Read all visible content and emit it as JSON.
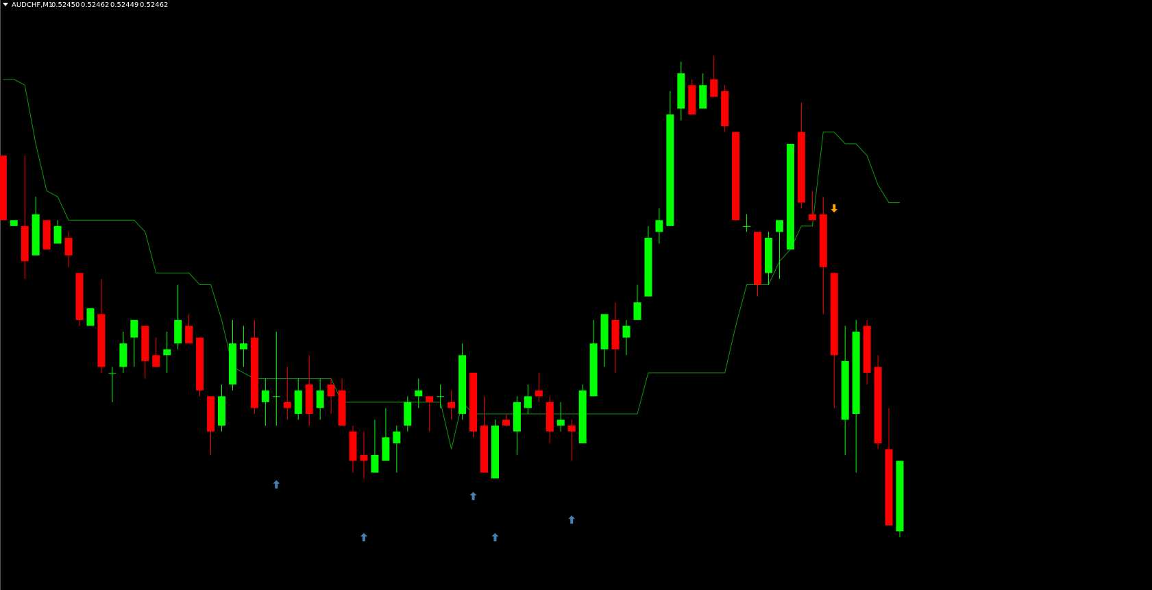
{
  "chart_data": {
    "type": "candlestick",
    "header": {
      "symbol": "AUDCHF,M1",
      "quote": [
        "0.52450",
        "0.52462",
        "0.52449",
        "0.52462"
      ]
    },
    "ylim": [
      0.5244,
      0.525405
    ],
    "up_color": "#00ff00",
    "down_color": "#ff0000",
    "open": [
      0.52514,
      0.52502,
      0.52502,
      0.52497,
      0.52503,
      0.52499,
      0.525,
      0.52494,
      0.52485,
      0.52487,
      0.52477,
      0.52478,
      0.52483,
      0.52485,
      0.5248,
      0.5248,
      0.52482,
      0.52485,
      0.52483,
      0.52473,
      0.52468,
      0.52475,
      0.52481,
      0.52483,
      0.52472,
      0.52473,
      0.52472,
      0.5247,
      0.52475,
      0.52471,
      0.52475,
      0.52474,
      0.52467,
      0.52463,
      0.5246,
      0.52462,
      0.52465,
      0.52468,
      0.52473,
      0.52473,
      0.52473,
      0.52472,
      0.5247,
      0.52477,
      0.52468,
      0.52459,
      0.52469,
      0.52467,
      0.52471,
      0.52474,
      0.52472,
      0.52468,
      0.52468,
      0.52465,
      0.52473,
      0.52481,
      0.52486,
      0.52483,
      0.52486,
      0.5249,
      0.52501,
      0.52502,
      0.52522,
      0.52526,
      0.52522,
      0.52527,
      0.52525,
      0.52518,
      0.52502,
      0.52501,
      0.52494,
      0.52501,
      0.52498,
      0.52518,
      0.52504,
      0.52504,
      0.52494,
      0.52469,
      0.5247,
      0.52485,
      0.52478,
      0.52464,
      0.5245
    ],
    "high": [
      0.52514,
      0.52503,
      0.52514,
      0.52507,
      0.52503,
      0.52503,
      0.52501,
      0.52494,
      0.52488,
      0.52493,
      0.52478,
      0.52484,
      0.52486,
      0.52485,
      0.52483,
      0.52484,
      0.52492,
      0.52487,
      0.52483,
      0.52473,
      0.52475,
      0.52486,
      0.52485,
      0.52486,
      0.52476,
      0.52484,
      0.52478,
      0.52476,
      0.5248,
      0.52476,
      0.52476,
      0.52476,
      0.52468,
      0.52467,
      0.52469,
      0.52471,
      0.52468,
      0.52473,
      0.52476,
      0.52473,
      0.52475,
      0.52474,
      0.52482,
      0.52477,
      0.52473,
      0.52469,
      0.5247,
      0.52473,
      0.52475,
      0.52477,
      0.52473,
      0.52472,
      0.52469,
      0.52475,
      0.52486,
      0.52487,
      0.52489,
      0.52486,
      0.52492,
      0.52502,
      0.52505,
      0.52525,
      0.5253,
      0.52527,
      0.52528,
      0.52531,
      0.52526,
      0.52518,
      0.52504,
      0.52501,
      0.52501,
      0.52503,
      0.52516,
      0.52523,
      0.52508,
      0.52507,
      0.52494,
      0.52485,
      0.52486,
      0.52486,
      0.5248,
      0.52471,
      0.52462
    ],
    "low": [
      0.52503,
      0.52502,
      0.52493,
      0.52497,
      0.52498,
      0.52499,
      0.52495,
      0.52485,
      0.52485,
      0.52477,
      0.52472,
      0.52477,
      0.52478,
      0.52476,
      0.52478,
      0.52477,
      0.52481,
      0.52482,
      0.52473,
      0.52463,
      0.52467,
      0.52474,
      0.52478,
      0.5247,
      0.52468,
      0.52468,
      0.52469,
      0.52469,
      0.52468,
      0.52469,
      0.5247,
      0.52468,
      0.5246,
      0.52459,
      0.5246,
      0.52462,
      0.5246,
      0.52467,
      0.52471,
      0.52467,
      0.52471,
      0.52469,
      0.52469,
      0.52466,
      0.5246,
      0.52459,
      0.52468,
      0.52463,
      0.5247,
      0.52472,
      0.52465,
      0.52467,
      0.52462,
      0.52465,
      0.52473,
      0.52478,
      0.52477,
      0.5248,
      0.52486,
      0.5249,
      0.52499,
      0.52502,
      0.5252,
      0.52521,
      0.52522,
      0.52524,
      0.52518,
      0.52503,
      0.52501,
      0.5249,
      0.52492,
      0.52493,
      0.52498,
      0.52505,
      0.52503,
      0.52487,
      0.52471,
      0.52463,
      0.5246,
      0.52475,
      0.52464,
      0.52451,
      0.52449
    ],
    "close": [
      0.52503,
      0.52503,
      0.52496,
      0.52504,
      0.52498,
      0.52502,
      0.52497,
      0.52486,
      0.52488,
      0.52478,
      0.52477,
      0.52482,
      0.52486,
      0.52479,
      0.52478,
      0.52481,
      0.52486,
      0.52482,
      0.52474,
      0.52467,
      0.52473,
      0.52482,
      0.52482,
      0.52471,
      0.52474,
      0.52473,
      0.52471,
      0.52474,
      0.5247,
      0.52474,
      0.52473,
      0.52468,
      0.52462,
      0.52462,
      0.52463,
      0.52466,
      0.52467,
      0.52472,
      0.52474,
      0.52472,
      0.52473,
      0.52471,
      0.5248,
      0.52467,
      0.5246,
      0.52468,
      0.52468,
      0.52472,
      0.52473,
      0.52473,
      0.52467,
      0.52469,
      0.52467,
      0.52474,
      0.52482,
      0.52487,
      0.52481,
      0.52485,
      0.52489,
      0.525,
      0.52503,
      0.52521,
      0.52528,
      0.52521,
      0.52526,
      0.52524,
      0.52519,
      0.52503,
      0.52502,
      0.52492,
      0.525,
      0.52503,
      0.52516,
      0.52506,
      0.52503,
      0.52495,
      0.5248,
      0.52479,
      0.52484,
      0.52477,
      0.52465,
      0.52451,
      0.52462
    ],
    "indicator": {
      "color": "#0d9a0d",
      "values": [
        0.52527,
        0.52527,
        0.52526,
        0.52516,
        0.52508,
        0.52507,
        0.52503,
        0.52503,
        0.52503,
        0.52503,
        0.52503,
        0.52503,
        0.52503,
        0.52501,
        0.52494,
        0.52494,
        0.52494,
        0.52494,
        0.52492,
        0.52492,
        0.52486,
        0.52478,
        0.52477,
        0.52476,
        0.52476,
        0.52476,
        0.52476,
        0.52476,
        0.52476,
        0.52476,
        0.52476,
        0.52472,
        0.52472,
        0.52472,
        0.52472,
        0.52472,
        0.52472,
        0.52472,
        0.52472,
        0.52472,
        0.52472,
        0.52464,
        0.52472,
        0.5247,
        0.5247,
        0.5247,
        0.5247,
        0.5247,
        0.5247,
        0.5247,
        0.5247,
        0.5247,
        0.5247,
        0.5247,
        0.5247,
        0.5247,
        0.5247,
        0.5247,
        0.5247,
        0.52477,
        0.52477,
        0.52477,
        0.52477,
        0.52477,
        0.52477,
        0.52477,
        0.52477,
        0.52485,
        0.52492,
        0.52492,
        0.52492,
        0.52496,
        0.52498,
        0.52502,
        0.52502,
        0.52518,
        0.52518,
        0.52516,
        0.52516,
        0.52514,
        0.52509,
        0.52506,
        0.52506
      ]
    },
    "buy_arrows": {
      "color": "#4a7fb5",
      "values": [
        null,
        null,
        null,
        null,
        null,
        null,
        null,
        null,
        null,
        null,
        null,
        null,
        null,
        null,
        null,
        null,
        null,
        null,
        null,
        null,
        null,
        null,
        null,
        null,
        null,
        0.52458,
        null,
        null,
        null,
        null,
        null,
        null,
        null,
        0.52449,
        null,
        null,
        null,
        null,
        null,
        null,
        null,
        null,
        null,
        0.52456,
        null,
        0.52449,
        null,
        null,
        null,
        null,
        null,
        null,
        0.52452,
        null,
        null,
        null,
        null,
        null,
        null,
        null,
        null,
        null,
        null,
        null,
        null,
        null,
        null,
        null,
        null,
        null,
        null,
        null,
        null,
        null,
        null,
        null,
        null,
        null,
        null,
        null,
        null,
        null,
        null
      ]
    },
    "sell_arrows": {
      "color": "#ffa500",
      "values": [
        null,
        null,
        null,
        null,
        null,
        null,
        null,
        null,
        null,
        null,
        null,
        null,
        null,
        null,
        null,
        null,
        null,
        null,
        null,
        null,
        null,
        null,
        null,
        null,
        null,
        null,
        null,
        null,
        null,
        null,
        null,
        null,
        null,
        null,
        null,
        null,
        null,
        null,
        null,
        null,
        null,
        null,
        null,
        null,
        null,
        null,
        null,
        null,
        null,
        null,
        null,
        null,
        null,
        null,
        null,
        null,
        null,
        null,
        null,
        null,
        null,
        null,
        null,
        null,
        null,
        null,
        null,
        null,
        null,
        null,
        null,
        null,
        null,
        null,
        null,
        null,
        0.52505,
        null,
        null,
        null,
        null,
        null,
        null
      ]
    }
  }
}
